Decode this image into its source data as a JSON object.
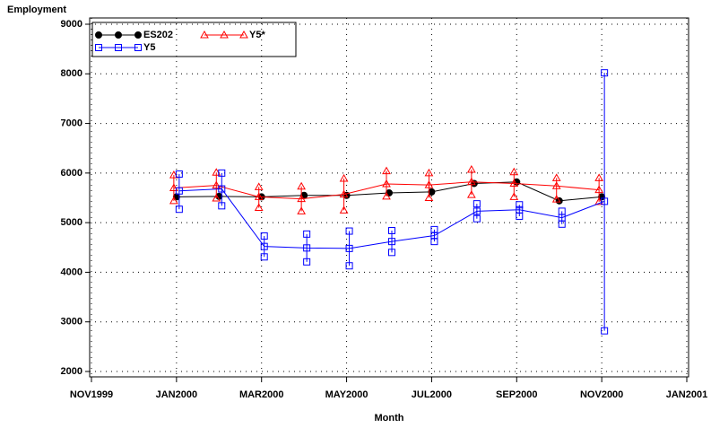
{
  "chart_data": {
    "type": "line",
    "y_label": "Employment",
    "x_label": "Month",
    "x": [
      "2000-01",
      "2000-02",
      "2000-03",
      "2000-04",
      "2000-05",
      "2000-06",
      "2000-07",
      "2000-08",
      "2000-09",
      "2000-10",
      "2000-11"
    ],
    "xlim": [
      "1999-11",
      "2001-01"
    ],
    "xticks": [
      {
        "value": "1999-11",
        "label": "NOV1999"
      },
      {
        "value": "2000-01",
        "label": "JAN2000"
      },
      {
        "value": "2000-03",
        "label": "MAR2000"
      },
      {
        "value": "2000-05",
        "label": "MAY2000"
      },
      {
        "value": "2000-07",
        "label": "JUL2000"
      },
      {
        "value": "2000-09",
        "label": "SEP2000"
      },
      {
        "value": "2000-11",
        "label": "NOV2000"
      },
      {
        "value": "2001-01",
        "label": "JAN2001"
      }
    ],
    "ylim": [
      2000,
      9000
    ],
    "yticks": [
      2000,
      3000,
      4000,
      5000,
      6000,
      7000,
      8000,
      9000
    ],
    "grid": true,
    "legend": "top-left",
    "series": [
      {
        "name": "ES202",
        "color": "#000000",
        "marker": "circle",
        "values": [
          5520,
          5530,
          5520,
          5550,
          5550,
          5600,
          5620,
          5790,
          5820,
          5440,
          5520
        ]
      },
      {
        "name": "Y5*",
        "color": "#ff0000",
        "marker": "triangle",
        "values": [
          5700,
          5750,
          5520,
          5480,
          5570,
          5780,
          5760,
          5820,
          5790,
          5740,
          5660
        ],
        "low": [
          5440,
          5490,
          5300,
          5230,
          5250,
          5530,
          5500,
          5560,
          5520,
          5470,
          5420
        ],
        "high": [
          5960,
          6010,
          5720,
          5730,
          5890,
          6040,
          6000,
          6070,
          6020,
          5900,
          5900
        ]
      },
      {
        "name": "Y5",
        "color": "#0000ff",
        "marker": "square",
        "values": [
          5640,
          5680,
          4520,
          4490,
          4480,
          4620,
          4740,
          5230,
          5260,
          5100,
          5430
        ],
        "low": [
          5270,
          5340,
          4310,
          4210,
          4130,
          4400,
          4620,
          5080,
          5130,
          4970,
          2820
        ],
        "high": [
          5980,
          6000,
          4730,
          4770,
          4830,
          4840,
          4860,
          5380,
          5360,
          5230,
          8020
        ]
      }
    ]
  }
}
